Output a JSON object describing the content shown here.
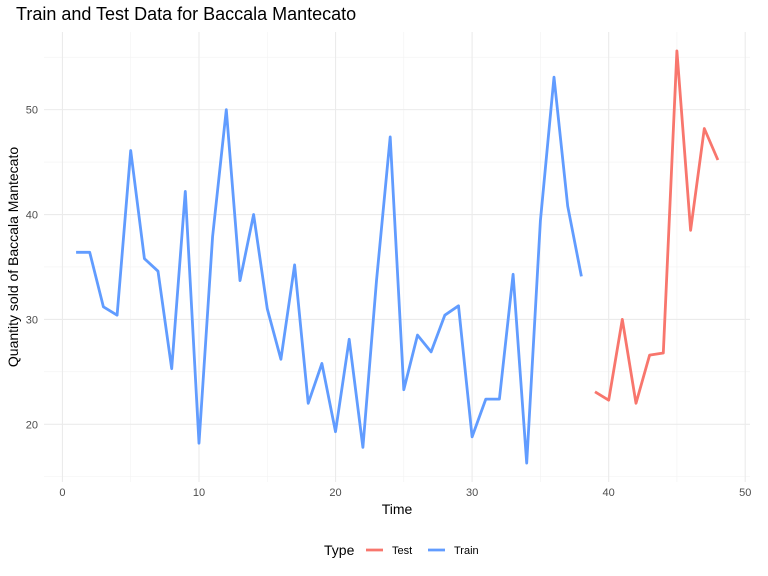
{
  "chart_data": {
    "type": "line",
    "title": "Train and Test Data for Baccala Mantecato",
    "xlabel": "Time",
    "ylabel": "Quantity sold of Baccala Mantecato",
    "xlim": [
      -1.35,
      50.35
    ],
    "ylim": [
      14.5,
      57.4
    ],
    "x_ticks": [
      0,
      10,
      20,
      30,
      40,
      50
    ],
    "y_ticks": [
      20,
      30,
      40,
      50
    ],
    "x_minor": [
      5,
      15,
      25,
      35,
      45
    ],
    "y_minor": [
      15,
      25,
      35,
      45,
      55
    ],
    "grid": true,
    "legend": {
      "title": "Type",
      "position": "bottom"
    },
    "series": [
      {
        "name": "Test",
        "color": "#F8766D",
        "x": [
          39,
          40,
          41,
          42,
          43,
          44,
          45,
          46,
          47,
          48
        ],
        "y": [
          23.1,
          22.3,
          30.0,
          22.0,
          26.6,
          26.8,
          55.6,
          38.5,
          48.2,
          45.2
        ]
      },
      {
        "name": "Train",
        "color": "#619CFF",
        "x": [
          1,
          2,
          3,
          4,
          5,
          6,
          7,
          8,
          9,
          10,
          11,
          12,
          13,
          14,
          15,
          16,
          17,
          18,
          19,
          20,
          21,
          22,
          23,
          24,
          25,
          26,
          27,
          28,
          29,
          30,
          31,
          32,
          33,
          34,
          35,
          36,
          37,
          38
        ],
        "y": [
          36.4,
          36.4,
          31.2,
          30.4,
          46.1,
          35.8,
          34.6,
          25.3,
          42.2,
          18.2,
          37.9,
          50.0,
          33.7,
          40.0,
          31.0,
          26.2,
          35.2,
          22.0,
          25.8,
          19.3,
          28.1,
          17.8,
          33.7,
          47.4,
          23.3,
          28.5,
          26.9,
          30.4,
          31.3,
          18.8,
          22.4,
          22.4,
          34.3,
          16.3,
          39.4,
          53.1,
          40.8,
          34.1
        ]
      }
    ]
  }
}
